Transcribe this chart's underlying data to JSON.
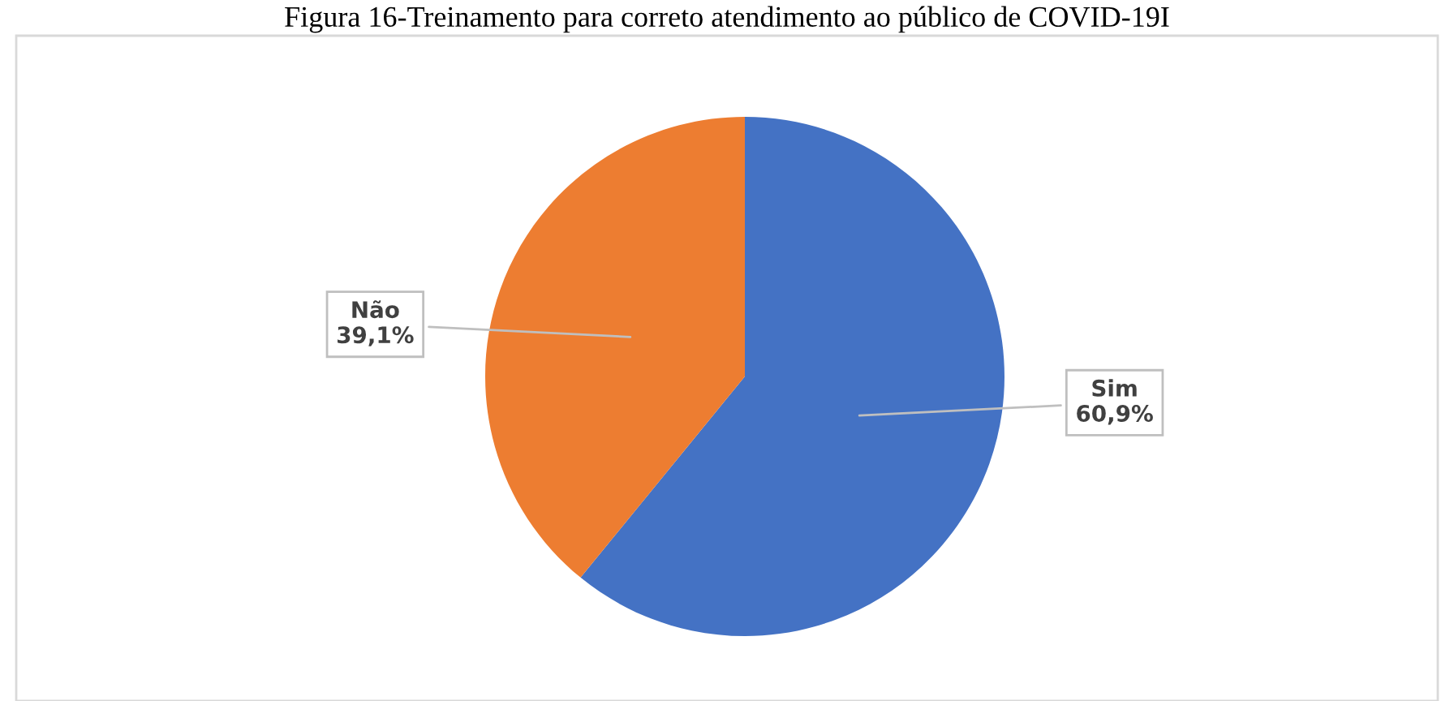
{
  "chart_data": {
    "type": "pie",
    "title": "Figura 16-Treinamento para correto atendimento ao público de COVID-19I",
    "categories": [
      "Sim",
      "Não"
    ],
    "values": [
      60.9,
      39.1
    ],
    "colors": [
      "#4472c4",
      "#ed7d31"
    ],
    "value_labels": [
      "60,9%",
      "39,1%"
    ],
    "legend": false
  }
}
